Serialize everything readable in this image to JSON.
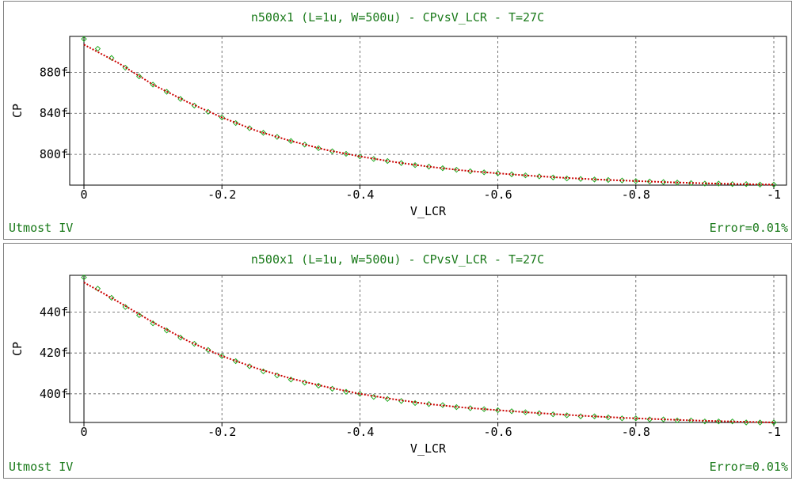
{
  "chart_data": [
    {
      "type": "line",
      "title": "n500x1 (L=1u, W=500u) - CPvsV_LCR - T=27C",
      "xlabel": "V_LCR",
      "ylabel": "CP",
      "xlim": [
        0,
        -1
      ],
      "ylim": [
        770,
        915
      ],
      "x_ticks": [
        0,
        -0.2,
        -0.4,
        -0.6,
        -0.8,
        -1
      ],
      "x_tick_labels": [
        "0",
        "-0.2",
        "-0.4",
        "-0.6",
        "-0.8",
        "-1"
      ],
      "y_ticks": [
        800,
        840,
        880
      ],
      "y_tick_labels": [
        "800f",
        "840f",
        "880f"
      ],
      "grid": true,
      "footer_left": "Utmost IV",
      "footer_right": "Error=0.01%",
      "series": [
        {
          "style": "markers",
          "color": "#22aa22",
          "x": [
            0,
            -0.02,
            -0.04,
            -0.06,
            -0.08,
            -0.1,
            -0.12,
            -0.14,
            -0.16,
            -0.18,
            -0.2,
            -0.22,
            -0.24,
            -0.26,
            -0.28,
            -0.3,
            -0.32,
            -0.34,
            -0.36,
            -0.38,
            -0.4,
            -0.42,
            -0.44,
            -0.46,
            -0.48,
            -0.5,
            -0.52,
            -0.54,
            -0.56,
            -0.58,
            -0.6,
            -0.62,
            -0.64,
            -0.66,
            -0.68,
            -0.7,
            -0.72,
            -0.74,
            -0.76,
            -0.78,
            -0.8,
            -0.82,
            -0.84,
            -0.86,
            -0.88,
            -0.9,
            -0.92,
            -0.94,
            -0.96,
            -0.98,
            -1
          ],
          "y": [
            912.5,
            903,
            894,
            884.5,
            876,
            868,
            861,
            854,
            847.5,
            841.5,
            836,
            830.5,
            825.5,
            821,
            817,
            813,
            809.5,
            806,
            803,
            800.5,
            798,
            795.5,
            793.5,
            791.5,
            789.5,
            788,
            786.5,
            785,
            783.5,
            782.5,
            781.5,
            780.5,
            779.5,
            778.5,
            777.5,
            776.5,
            776,
            775.5,
            775,
            774.5,
            774,
            773.5,
            773,
            772.5,
            772,
            771.5,
            771.5,
            771,
            771,
            770.5,
            770.5
          ]
        },
        {
          "style": "dotted-line",
          "color": "#cc0000",
          "x": [
            0,
            -0.05,
            -0.1,
            -0.15,
            -0.2,
            -0.25,
            -0.3,
            -0.35,
            -0.4,
            -0.45,
            -0.5,
            -0.55,
            -0.6,
            -0.65,
            -0.7,
            -0.75,
            -0.8,
            -0.85,
            -0.9,
            -0.95,
            -1
          ],
          "y": [
            907,
            889,
            868,
            851,
            836,
            823,
            813,
            804.5,
            798,
            792.5,
            788,
            784.3,
            781.5,
            779,
            777,
            775.3,
            774,
            772.8,
            771.8,
            771,
            770.5
          ]
        }
      ]
    },
    {
      "type": "line",
      "title": "n500x1 (L=1u, W=500u) - CPvsV_LCR - T=27C",
      "xlabel": "V_LCR",
      "ylabel": "CP",
      "xlim": [
        0,
        -1
      ],
      "ylim": [
        386,
        458
      ],
      "x_ticks": [
        0,
        -0.2,
        -0.4,
        -0.6,
        -0.8,
        -1
      ],
      "x_tick_labels": [
        "0",
        "-0.2",
        "-0.4",
        "-0.6",
        "-0.8",
        "-1"
      ],
      "y_ticks": [
        400,
        420,
        440
      ],
      "y_tick_labels": [
        "400f",
        "420f",
        "440f"
      ],
      "grid": true,
      "footer_left": "Utmost IV",
      "footer_right": "Error=0.01%",
      "series": [
        {
          "style": "markers",
          "color": "#22aa22",
          "x": [
            0,
            -0.02,
            -0.04,
            -0.06,
            -0.08,
            -0.1,
            -0.12,
            -0.14,
            -0.16,
            -0.18,
            -0.2,
            -0.22,
            -0.24,
            -0.26,
            -0.28,
            -0.3,
            -0.32,
            -0.34,
            -0.36,
            -0.38,
            -0.4,
            -0.42,
            -0.44,
            -0.46,
            -0.48,
            -0.5,
            -0.52,
            -0.54,
            -0.56,
            -0.58,
            -0.6,
            -0.62,
            -0.64,
            -0.66,
            -0.68,
            -0.7,
            -0.72,
            -0.74,
            -0.76,
            -0.78,
            -0.8,
            -0.82,
            -0.84,
            -0.86,
            -0.88,
            -0.9,
            -0.92,
            -0.94,
            -0.96,
            -0.98,
            -1
          ],
          "y": [
            457,
            451.5,
            447,
            442.5,
            438.5,
            434.5,
            431,
            427.5,
            424.5,
            421.5,
            418.5,
            416,
            413.5,
            411,
            409,
            407,
            405.5,
            404,
            402.5,
            401,
            400,
            398.5,
            397.5,
            396.5,
            395.5,
            395,
            394.5,
            393.5,
            393,
            392.5,
            392,
            391.5,
            391,
            390.5,
            390,
            389.5,
            389,
            389,
            388.5,
            388,
            388,
            387.5,
            387.5,
            387,
            387,
            386.5,
            386.5,
            386.5,
            386,
            386,
            386
          ]
        },
        {
          "style": "dotted-line",
          "color": "#cc0000",
          "x": [
            0,
            -0.05,
            -0.1,
            -0.15,
            -0.2,
            -0.25,
            -0.3,
            -0.35,
            -0.4,
            -0.45,
            -0.5,
            -0.55,
            -0.6,
            -0.65,
            -0.7,
            -0.75,
            -0.8,
            -0.85,
            -0.9,
            -0.95,
            -1
          ],
          "y": [
            454.5,
            445,
            435,
            426,
            418.5,
            412.5,
            407.5,
            403.5,
            400,
            397.3,
            395,
            393.3,
            392,
            390.8,
            389.7,
            388.8,
            388,
            387.4,
            386.8,
            386.4,
            386
          ]
        }
      ]
    }
  ]
}
